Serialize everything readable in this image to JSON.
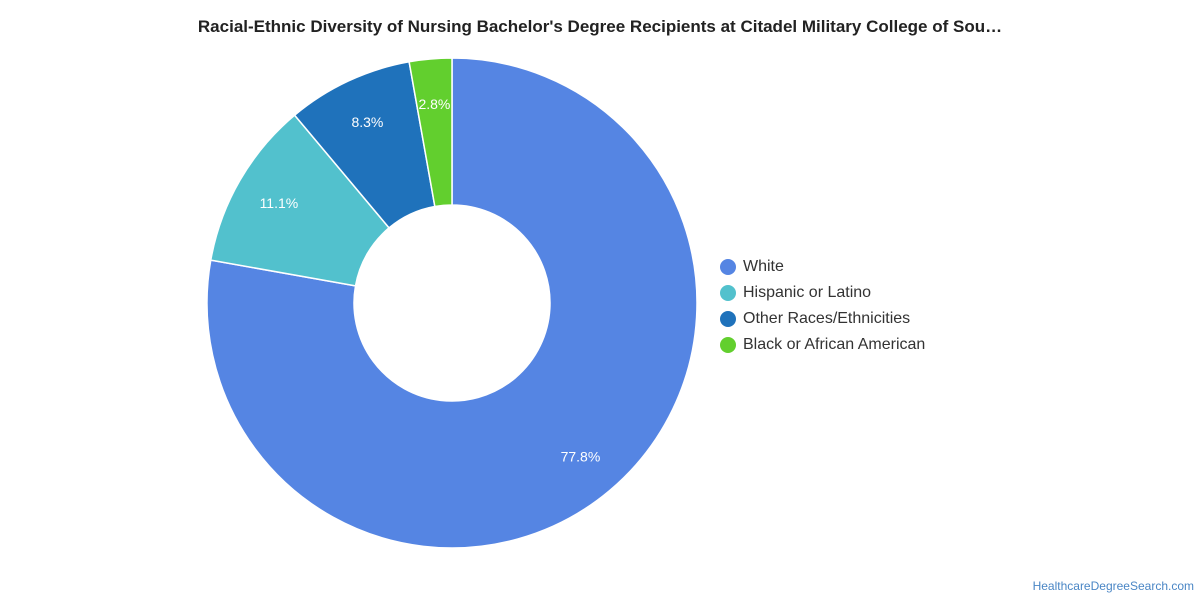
{
  "chart_data": {
    "type": "pie",
    "title": "Racial-Ethnic Diversity of Nursing Bachelor's Degree Recipients at Citadel Military College of Sou…",
    "donut": true,
    "legend_position": "right",
    "slices": [
      {
        "label": "White",
        "value": 77.8,
        "value_label": "77.8%",
        "color": "#5585e3"
      },
      {
        "label": "Hispanic or Latino",
        "value": 11.1,
        "value_label": "11.1%",
        "color": "#52c1cd"
      },
      {
        "label": "Other Races/Ethnicities",
        "value": 8.3,
        "value_label": "8.3%",
        "color": "#1f72bb"
      },
      {
        "label": "Black or African American",
        "value": 2.8,
        "value_label": "2.8%",
        "color": "#62cf2e"
      }
    ]
  },
  "footer": {
    "source": "HealthcareDegreeSearch.com"
  }
}
